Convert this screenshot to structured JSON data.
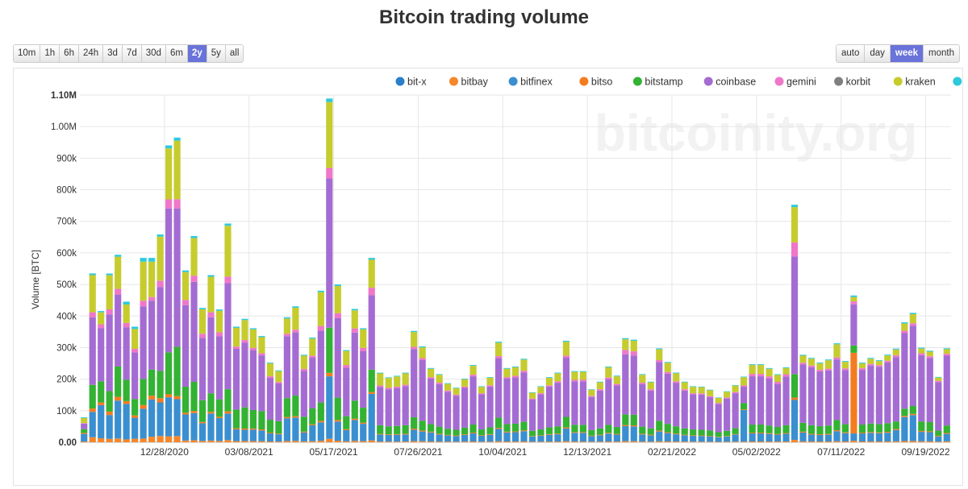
{
  "title": "Bitcoin trading volume",
  "range_buttons": [
    "10m",
    "1h",
    "6h",
    "24h",
    "3d",
    "7d",
    "30d",
    "6m",
    "2y",
    "5y",
    "all"
  ],
  "range_active": "2y",
  "interval_buttons": [
    "auto",
    "day",
    "week",
    "month"
  ],
  "interval_active": "week",
  "watermark": "bitcoinity.org",
  "colors": {
    "bit-x": "#2a7fc9",
    "bitbay": "#f5872a",
    "bitfinex": "#3a8fd0",
    "bitso": "#f47c20",
    "bitstamp": "#33b233",
    "coinbase": "#a46cd2",
    "gemini": "#ef77c9",
    "korbit": "#7f7f7f",
    "kraken": "#c6cc2e",
    "others": "#2ec9db"
  },
  "chart_data": {
    "type": "bar",
    "stacked": true,
    "title": "Bitcoin trading volume",
    "ylabel": "Volume [BTC]",
    "xlabel": "",
    "ylim": [
      0,
      1100000
    ],
    "yticks": [
      0,
      100000,
      200000,
      300000,
      400000,
      500000,
      600000,
      700000,
      800000,
      900000,
      1000000,
      1100000
    ],
    "ytick_labels": [
      "0.00",
      "100k",
      "200k",
      "300k",
      "400k",
      "500k",
      "600k",
      "700k",
      "800k",
      "900k",
      "1.00M",
      "1.10M"
    ],
    "xtick_labels": [
      "12/28/2020",
      "03/08/2021",
      "05/17/2021",
      "07/26/2021",
      "10/04/2021",
      "12/13/2021",
      "02/21/2022",
      "05/02/2022",
      "07/11/2022",
      "09/19/2022"
    ],
    "xtick_indices": [
      9,
      19,
      29,
      39,
      49,
      59,
      69,
      79,
      89,
      99
    ],
    "legend": [
      "bit-x",
      "bitbay",
      "bitfinex",
      "bitso",
      "bitstamp",
      "coinbase",
      "gemini",
      "korbit",
      "kraken",
      "others"
    ],
    "series_order": [
      "bitbay",
      "bitfinex",
      "bitso",
      "bitstamp",
      "coinbase",
      "gemini",
      "kraken",
      "others"
    ],
    "totals": [
      80000,
      535000,
      420000,
      540000,
      600000,
      450000,
      370000,
      590000,
      590000,
      665000,
      950000,
      975000,
      550000,
      660000,
      430000,
      535000,
      425000,
      700000,
      370000,
      395000,
      365000,
      340000,
      255000,
      230000,
      400000,
      435000,
      280000,
      335000,
      485000,
      1100000,
      505000,
      295000,
      440000,
      365000,
      590000,
      225000,
      210000,
      215000,
      225000,
      360000,
      310000,
      240000,
      225000,
      195000,
      180000,
      210000,
      255000,
      185000,
      215000,
      325000,
      240000,
      245000,
      270000,
      165000,
      185000,
      215000,
      230000,
      335000,
      230000,
      230000,
      175000,
      200000,
      250000,
      220000,
      340000,
      335000,
      225000,
      200000,
      310000,
      265000,
      230000,
      200000,
      185000,
      180000,
      170000,
      145000,
      165000,
      185000,
      200000,
      255000,
      255000,
      240000,
      220000,
      245000,
      745000,
      280000,
      270000,
      255000,
      265000,
      320000,
      260000,
      465000,
      255000,
      270000,
      260000,
      275000,
      300000,
      380000,
      410000,
      300000,
      290000,
      205000,
      295000
    ],
    "shares": {
      "bitbay": [
        0.03,
        0.03,
        0.03,
        0.02,
        0.02,
        0.02,
        0.03,
        0.02,
        0.03,
        0.03,
        0.02,
        0.02,
        0.01,
        0.01,
        0.01,
        0.01,
        0.01,
        0.01,
        0.01,
        0.01,
        0.01,
        0.01,
        0.01,
        0.01,
        0.01,
        0.01,
        0.01,
        0.01,
        0.01,
        0.01,
        0.01,
        0.01,
        0.01,
        0.01,
        0.01,
        0.01,
        0.01,
        0.01,
        0.01,
        0.01,
        0.01,
        0.01,
        0.01,
        0.01,
        0.01,
        0.01,
        0.01,
        0.01,
        0.01,
        0.01,
        0.01,
        0.01,
        0.01,
        0.01,
        0.01,
        0.01,
        0.01,
        0.01,
        0.01,
        0.01,
        0.01,
        0.01,
        0.01,
        0.01,
        0.01,
        0.01,
        0.01,
        0.01,
        0.01,
        0.01,
        0.01,
        0.01,
        0.01,
        0.01,
        0.01,
        0.01,
        0.01,
        0.01,
        0.01,
        0.01,
        0.01,
        0.01,
        0.01,
        0.01,
        0.01,
        0.01,
        0.01,
        0.01,
        0.01,
        0.01,
        0.01,
        0.01,
        0.01,
        0.01,
        0.01,
        0.01,
        0.01,
        0.01,
        0.01,
        0.01,
        0.01,
        0.01,
        0.01
      ],
      "bitfinex": [
        0.3,
        0.15,
        0.25,
        0.14,
        0.2,
        0.25,
        0.18,
        0.16,
        0.2,
        0.16,
        0.13,
        0.12,
        0.15,
        0.13,
        0.13,
        0.16,
        0.17,
        0.12,
        0.1,
        0.09,
        0.1,
        0.1,
        0.1,
        0.1,
        0.18,
        0.17,
        0.1,
        0.15,
        0.12,
        0.18,
        0.12,
        0.12,
        0.15,
        0.15,
        0.25,
        0.1,
        0.1,
        0.1,
        0.1,
        0.1,
        0.1,
        0.12,
        0.1,
        0.1,
        0.1,
        0.1,
        0.1,
        0.1,
        0.1,
        0.12,
        0.12,
        0.12,
        0.12,
        0.1,
        0.1,
        0.1,
        0.1,
        0.12,
        0.12,
        0.12,
        0.1,
        0.1,
        0.1,
        0.1,
        0.14,
        0.14,
        0.1,
        0.1,
        0.1,
        0.1,
        0.1,
        0.1,
        0.1,
        0.1,
        0.1,
        0.1,
        0.1,
        0.12,
        0.5,
        0.1,
        0.1,
        0.1,
        0.1,
        0.1,
        0.17,
        0.1,
        0.08,
        0.08,
        0.08,
        0.1,
        0.1,
        0.05,
        0.1,
        0.1,
        0.1,
        0.1,
        0.12,
        0.2,
        0.2,
        0.1,
        0.1,
        0.08,
        0.08
      ],
      "bitso": [
        0.04,
        0.02,
        0.02,
        0.02,
        0.02,
        0.02,
        0.02,
        0.02,
        0.02,
        0.02,
        0.01,
        0.01,
        0.01,
        0.01,
        0.01,
        0.01,
        0.01,
        0.01,
        0.01,
        0.01,
        0.01,
        0.01,
        0.01,
        0.01,
        0.01,
        0.01,
        0.01,
        0.01,
        0.01,
        0.01,
        0.01,
        0.01,
        0.01,
        0.01,
        0.01,
        0.01,
        0.01,
        0.01,
        0.01,
        0.01,
        0.01,
        0.01,
        0.01,
        0.01,
        0.01,
        0.01,
        0.01,
        0.01,
        0.01,
        0.01,
        0.01,
        0.01,
        0.01,
        0.01,
        0.01,
        0.01,
        0.01,
        0.01,
        0.01,
        0.01,
        0.01,
        0.01,
        0.01,
        0.01,
        0.01,
        0.01,
        0.01,
        0.01,
        0.01,
        0.01,
        0.01,
        0.01,
        0.01,
        0.01,
        0.01,
        0.01,
        0.01,
        0.01,
        0.01,
        0.01,
        0.01,
        0.01,
        0.01,
        0.01,
        0.01,
        0.01,
        0.01,
        0.01,
        0.01,
        0.01,
        0.01,
        0.55,
        0.01,
        0.01,
        0.01,
        0.01,
        0.01,
        0.01,
        0.01,
        0.01,
        0.01,
        0.01,
        0.01
      ],
      "bitstamp": [
        0.15,
        0.14,
        0.16,
        0.12,
        0.16,
        0.15,
        0.14,
        0.14,
        0.14,
        0.13,
        0.14,
        0.16,
        0.15,
        0.14,
        0.16,
        0.11,
        0.13,
        0.1,
        0.16,
        0.17,
        0.16,
        0.17,
        0.16,
        0.17,
        0.15,
        0.15,
        0.17,
        0.15,
        0.12,
        0.13,
        0.14,
        0.14,
        0.13,
        0.13,
        0.12,
        0.12,
        0.12,
        0.12,
        0.12,
        0.1,
        0.1,
        0.1,
        0.1,
        0.1,
        0.1,
        0.1,
        0.1,
        0.1,
        0.1,
        0.1,
        0.1,
        0.1,
        0.1,
        0.1,
        0.1,
        0.1,
        0.1,
        0.1,
        0.1,
        0.1,
        0.1,
        0.1,
        0.1,
        0.1,
        0.1,
        0.1,
        0.1,
        0.1,
        0.1,
        0.1,
        0.1,
        0.1,
        0.1,
        0.1,
        0.1,
        0.1,
        0.1,
        0.1,
        0.1,
        0.1,
        0.1,
        0.1,
        0.1,
        0.1,
        0.1,
        0.1,
        0.1,
        0.1,
        0.1,
        0.1,
        0.1,
        0.05,
        0.1,
        0.1,
        0.1,
        0.1,
        0.08,
        0.06,
        0.06,
        0.1,
        0.1,
        0.08,
        0.08
      ],
      "coinbase": [
        0.22,
        0.4,
        0.4,
        0.45,
        0.38,
        0.37,
        0.4,
        0.39,
        0.37,
        0.4,
        0.48,
        0.45,
        0.47,
        0.48,
        0.46,
        0.45,
        0.47,
        0.48,
        0.52,
        0.52,
        0.52,
        0.52,
        0.52,
        0.52,
        0.49,
        0.46,
        0.52,
        0.48,
        0.47,
        0.43,
        0.5,
        0.52,
        0.49,
        0.49,
        0.4,
        0.54,
        0.56,
        0.56,
        0.55,
        0.6,
        0.62,
        0.6,
        0.6,
        0.6,
        0.6,
        0.6,
        0.6,
        0.6,
        0.6,
        0.58,
        0.6,
        0.6,
        0.58,
        0.6,
        0.6,
        0.6,
        0.6,
        0.56,
        0.6,
        0.6,
        0.6,
        0.6,
        0.58,
        0.6,
        0.56,
        0.56,
        0.6,
        0.6,
        0.6,
        0.6,
        0.6,
        0.6,
        0.6,
        0.62,
        0.62,
        0.62,
        0.62,
        0.6,
        0.26,
        0.6,
        0.6,
        0.62,
        0.62,
        0.63,
        0.5,
        0.66,
        0.68,
        0.68,
        0.66,
        0.6,
        0.66,
        0.28,
        0.68,
        0.68,
        0.7,
        0.7,
        0.68,
        0.63,
        0.62,
        0.7,
        0.7,
        0.75,
        0.75
      ],
      "gemini": [
        0.02,
        0.03,
        0.03,
        0.03,
        0.03,
        0.03,
        0.03,
        0.03,
        0.02,
        0.03,
        0.03,
        0.03,
        0.03,
        0.03,
        0.03,
        0.03,
        0.03,
        0.03,
        0.02,
        0.02,
        0.02,
        0.02,
        0.02,
        0.02,
        0.02,
        0.02,
        0.02,
        0.02,
        0.03,
        0.03,
        0.03,
        0.03,
        0.03,
        0.03,
        0.04,
        0.02,
        0.02,
        0.02,
        0.02,
        0.02,
        0.02,
        0.02,
        0.02,
        0.02,
        0.02,
        0.02,
        0.02,
        0.02,
        0.02,
        0.02,
        0.02,
        0.02,
        0.02,
        0.02,
        0.02,
        0.02,
        0.02,
        0.02,
        0.02,
        0.02,
        0.02,
        0.02,
        0.02,
        0.02,
        0.04,
        0.04,
        0.02,
        0.02,
        0.02,
        0.02,
        0.02,
        0.02,
        0.02,
        0.02,
        0.02,
        0.02,
        0.02,
        0.02,
        0.02,
        0.03,
        0.03,
        0.03,
        0.03,
        0.03,
        0.06,
        0.02,
        0.02,
        0.02,
        0.02,
        0.02,
        0.02,
        0.02,
        0.02,
        0.02,
        0.02,
        0.02,
        0.02,
        0.02,
        0.02,
        0.02,
        0.02,
        0.02,
        0.02
      ],
      "kraken": [
        0.2,
        0.22,
        0.09,
        0.2,
        0.17,
        0.13,
        0.17,
        0.21,
        0.19,
        0.21,
        0.17,
        0.19,
        0.16,
        0.18,
        0.18,
        0.21,
        0.16,
        0.23,
        0.16,
        0.16,
        0.16,
        0.15,
        0.16,
        0.15,
        0.12,
        0.16,
        0.15,
        0.16,
        0.22,
        0.19,
        0.17,
        0.15,
        0.13,
        0.16,
        0.15,
        0.17,
        0.15,
        0.15,
        0.16,
        0.13,
        0.11,
        0.11,
        0.11,
        0.11,
        0.11,
        0.11,
        0.11,
        0.11,
        0.11,
        0.13,
        0.11,
        0.11,
        0.13,
        0.11,
        0.11,
        0.11,
        0.11,
        0.13,
        0.11,
        0.11,
        0.11,
        0.11,
        0.13,
        0.11,
        0.1,
        0.1,
        0.11,
        0.11,
        0.11,
        0.11,
        0.11,
        0.11,
        0.11,
        0.11,
        0.11,
        0.11,
        0.11,
        0.11,
        0.13,
        0.11,
        0.11,
        0.1,
        0.1,
        0.08,
        0.15,
        0.08,
        0.08,
        0.08,
        0.1,
        0.13,
        0.08,
        0.03,
        0.06,
        0.06,
        0.05,
        0.06,
        0.06,
        0.06,
        0.07,
        0.05,
        0.05,
        0.05,
        0.05
      ],
      "others": [
        0.03,
        0.01,
        0.01,
        0.01,
        0.01,
        0.02,
        0.02,
        0.02,
        0.02,
        0.01,
        0.01,
        0.01,
        0.01,
        0.01,
        0.01,
        0.01,
        0.01,
        0.01,
        0.01,
        0.01,
        0.01,
        0.01,
        0.01,
        0.01,
        0.01,
        0.01,
        0.01,
        0.01,
        0.01,
        0.01,
        0.01,
        0.01,
        0.01,
        0.01,
        0.01,
        0.01,
        0.01,
        0.01,
        0.01,
        0.01,
        0.01,
        0.01,
        0.01,
        0.01,
        0.01,
        0.01,
        0.01,
        0.01,
        0.01,
        0.01,
        0.01,
        0.01,
        0.01,
        0.01,
        0.01,
        0.01,
        0.01,
        0.01,
        0.01,
        0.01,
        0.01,
        0.01,
        0.01,
        0.01,
        0.01,
        0.01,
        0.01,
        0.01,
        0.01,
        0.01,
        0.01,
        0.01,
        0.01,
        0.01,
        0.01,
        0.01,
        0.01,
        0.01,
        0.01,
        0.01,
        0.01,
        0.01,
        0.01,
        0.01,
        0.01,
        0.01,
        0.01,
        0.01,
        0.01,
        0.01,
        0.01,
        0.01,
        0.01,
        0.01,
        0.01,
        0.01,
        0.01,
        0.01,
        0.01,
        0.01,
        0.01,
        0.01,
        0.01
      ]
    }
  }
}
